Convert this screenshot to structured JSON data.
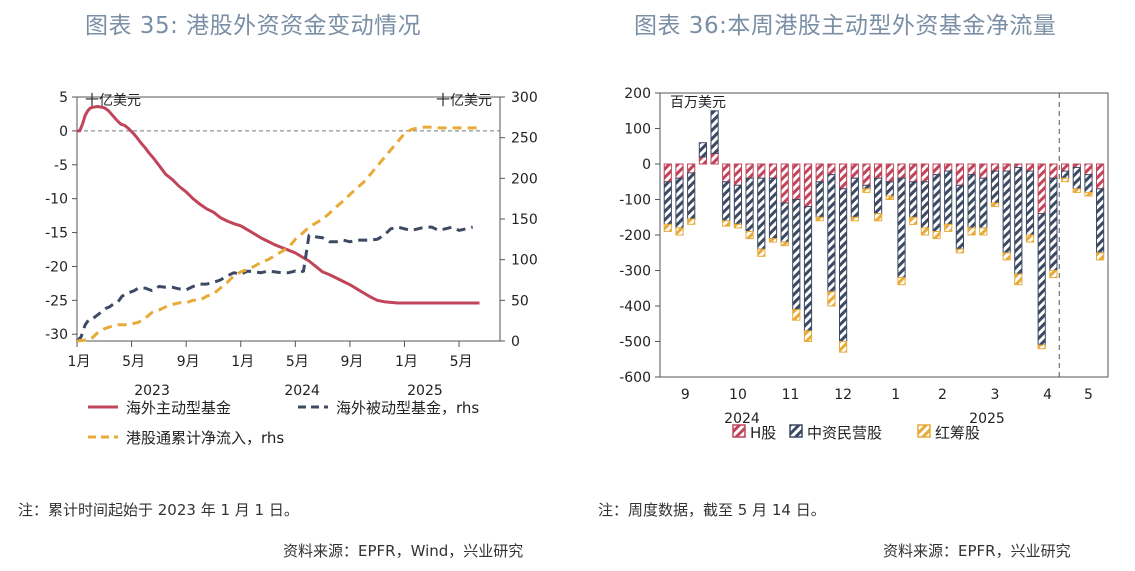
{
  "left_title": "图表 35:  港股外资资金变动情况",
  "right_title": "图表 36:本周港股主动型外资基金净流量",
  "left_note": "注：累计时间起始于 2023 年 1 月 1 日。",
  "left_source": "资料来源：EPFR，Wind，兴业研究",
  "right_note": "注：周度数据，截至 5 月 14 日。",
  "right_source": "资料来源：EPFR，兴业研究",
  "colors": {
    "active": "#c0455b",
    "passive": "#3d4a63",
    "connect": "#e8aa38",
    "h": "#c0455b",
    "china": "#3d4a63",
    "red": "#e8aa38"
  },
  "chart_data": [
    {
      "type": "line",
      "unit_left": "十亿美元",
      "unit_right": "十亿美元",
      "x_ticks": [
        "1月",
        "5月",
        "9月",
        "1月",
        "5月",
        "9月",
        "1月",
        "5月"
      ],
      "x_years": [
        "2023",
        "2024",
        "2025"
      ],
      "y_left": {
        "ticks": [
          5,
          0,
          -5,
          -10,
          -15,
          -20,
          -25,
          -30
        ],
        "range": [
          -31,
          5
        ]
      },
      "y_right": {
        "ticks": [
          300,
          250,
          200,
          150,
          100,
          50,
          0
        ],
        "range": [
          0,
          300
        ]
      },
      "legend": [
        "海外主动型基金",
        "海外被动型基金，rhs",
        "港股通累计净流入，rhs"
      ],
      "series": [
        {
          "name": "海外主动型基金",
          "axis": "left",
          "x": [
            0,
            0.2,
            0.4,
            0.6,
            0.8,
            1.0,
            1.2,
            1.5,
            1.8,
            2.0,
            2.3,
            2.6,
            2.9,
            3.2,
            3.5,
            3.8,
            4.1,
            4.4,
            4.7,
            5.0,
            5.3,
            5.6,
            5.9,
            6.2,
            6.5,
            7.0,
            7.5,
            8.0,
            8.5,
            9.0,
            9.5,
            10.0,
            10.5,
            11.0,
            11.5,
            12.0,
            12.5,
            13.0,
            13.5,
            14.0,
            14.5,
            15.0,
            15.5,
            16.0,
            16.5,
            17.0,
            17.5,
            18.0,
            18.5,
            19.0,
            19.5,
            20.0,
            20.5,
            21.0,
            21.5,
            22.0,
            22.5,
            23.0,
            23.5,
            24.0,
            24.5,
            25.0,
            25.5,
            26.0,
            26.5,
            27.0,
            27.5,
            28.0,
            28.5,
            29.0,
            29.5
          ],
          "y": [
            0,
            0,
            1.0,
            2.3,
            3.0,
            3.4,
            3.5,
            3.6,
            3.5,
            3.4,
            3.0,
            2.3,
            1.6,
            1.0,
            0.8,
            0.3,
            -0.3,
            -1.0,
            -1.8,
            -2.5,
            -3.3,
            -4.0,
            -4.8,
            -5.6,
            -6.4,
            -7.2,
            -8.2,
            -9.0,
            -10.0,
            -10.8,
            -11.5,
            -12.0,
            -12.8,
            -13.3,
            -13.7,
            -14.0,
            -14.6,
            -15.2,
            -15.8,
            -16.3,
            -16.8,
            -17.2,
            -17.6,
            -18.0,
            -18.6,
            -19.2,
            -20.0,
            -20.8,
            -21.2,
            -21.7,
            -22.2,
            -22.7,
            -23.3,
            -23.9,
            -24.5,
            -25.0,
            -25.2,
            -25.3,
            -25.4,
            -25.4,
            -25.4,
            -25.4,
            -25.4,
            -25.4,
            -25.4,
            -25.4,
            -25.4,
            -25.4,
            -25.4,
            -25.4,
            -25.4
          ]
        },
        {
          "name": "海外被动型基金，rhs",
          "axis": "right",
          "x": [
            0,
            0.3,
            0.6,
            0.9,
            1.2,
            1.5,
            1.8,
            2.1,
            2.4,
            2.7,
            3.0,
            3.3,
            3.6,
            3.9,
            4.2,
            4.5,
            5.0,
            5.5,
            6.0,
            6.5,
            7.0,
            7.5,
            8.0,
            8.5,
            9.0,
            9.5,
            10.0,
            10.5,
            11.0,
            11.5,
            12.0,
            12.5,
            13.0,
            13.5,
            14.0,
            14.5,
            15.0,
            15.5,
            16.0,
            16.3,
            16.6,
            17.0,
            17.5,
            18.0,
            18.5,
            19.0,
            19.5,
            20.0,
            20.5,
            21.0,
            21.5,
            22.0,
            22.5,
            23.0,
            23.5,
            24.0,
            24.5,
            25.0,
            25.5,
            26.0,
            26.5,
            27.0,
            27.5,
            28.0,
            28.5,
            29.0
          ],
          "y": [
            0,
            5,
            20,
            27,
            28,
            32,
            36,
            40,
            42,
            46,
            48,
            55,
            58,
            60,
            62,
            65,
            65,
            62,
            67,
            66,
            66,
            64,
            63,
            67,
            70,
            70,
            72,
            75,
            80,
            84,
            82,
            86,
            85,
            84,
            86,
            85,
            84,
            84,
            86,
            84,
            86,
            130,
            128,
            127,
            122,
            122,
            124,
            122,
            124,
            124,
            124,
            125,
            130,
            138,
            140,
            138,
            136,
            138,
            140,
            140,
            136,
            138,
            140,
            136,
            138,
            140
          ]
        },
        {
          "name": "港股通累计净流入，rhs",
          "axis": "right",
          "x": [
            0,
            0.5,
            1.0,
            1.5,
            2.0,
            2.5,
            3.0,
            3.5,
            4.0,
            4.5,
            5.0,
            5.5,
            6.0,
            6.5,
            7.0,
            7.5,
            8.0,
            8.5,
            9.0,
            9.5,
            10.0,
            10.5,
            11.0,
            11.5,
            12.0,
            12.5,
            13.0,
            13.5,
            14.0,
            14.5,
            15.0,
            15.5,
            16.0,
            16.5,
            17.0,
            17.5,
            18.0,
            18.5,
            19.0,
            19.5,
            20.0,
            20.5,
            21.0,
            21.5,
            22.0,
            22.5,
            23.0,
            23.5,
            24.0,
            24.5,
            25.0,
            25.5,
            26.0,
            26.5,
            27.0,
            27.5,
            28.0,
            28.5,
            29.0,
            29.5
          ],
          "y": [
            0,
            1,
            2,
            10,
            15,
            18,
            20,
            20,
            21,
            23,
            28,
            35,
            38,
            42,
            45,
            47,
            47,
            50,
            50,
            55,
            58,
            65,
            72,
            80,
            85,
            88,
            92,
            97,
            100,
            105,
            110,
            115,
            125,
            132,
            140,
            145,
            150,
            157,
            165,
            172,
            180,
            188,
            195,
            205,
            215,
            225,
            235,
            245,
            255,
            260,
            262,
            263,
            263,
            262,
            262,
            262,
            262,
            262,
            262,
            262
          ]
        }
      ]
    },
    {
      "type": "bar",
      "unit": "百万美元",
      "y_ticks": [
        200,
        100,
        0,
        -100,
        -200,
        -300,
        -400,
        -500,
        -600
      ],
      "ylim": [
        -600,
        200
      ],
      "month_labels": [
        "9",
        "10",
        "11",
        "12",
        "1",
        "2",
        "3",
        "4",
        "5"
      ],
      "year_labels": [
        "2024",
        "2025"
      ],
      "legend": [
        "H股",
        "中资民营股",
        "红筹股"
      ],
      "series": [
        {
          "name": "H股",
          "values": [
            -50,
            -40,
            -25,
            20,
            30,
            -50,
            -60,
            -40,
            -40,
            -40,
            -110,
            -100,
            -120,
            -50,
            -30,
            -70,
            -40,
            -60,
            -40,
            -50,
            -40,
            -50,
            -50,
            -30,
            -20,
            -60,
            -30,
            -40,
            -20,
            -20,
            -10,
            -20,
            -140,
            -40,
            -20,
            -10,
            -30,
            -70
          ]
        },
        {
          "name": "中资民营股",
          "values": [
            -120,
            -140,
            -130,
            40,
            120,
            -110,
            -110,
            -150,
            -200,
            -170,
            -110,
            -310,
            -350,
            -100,
            -330,
            -430,
            -110,
            -10,
            -100,
            -40,
            -280,
            -100,
            -130,
            -160,
            -150,
            -180,
            -150,
            -140,
            -90,
            -230,
            -300,
            -180,
            -370,
            -260,
            -20,
            -60,
            -50,
            -180
          ]
        },
        {
          "name": "红筹股",
          "values": [
            -20,
            -20,
            -15,
            0,
            0,
            -15,
            -10,
            -20,
            -20,
            -10,
            -10,
            -30,
            -30,
            -10,
            -40,
            -30,
            -10,
            -10,
            -20,
            -10,
            -20,
            -20,
            -20,
            -20,
            -20,
            -10,
            -20,
            -20,
            -10,
            -20,
            -30,
            -20,
            -10,
            -20,
            -10,
            -10,
            -10,
            -20
          ]
        }
      ]
    }
  ]
}
